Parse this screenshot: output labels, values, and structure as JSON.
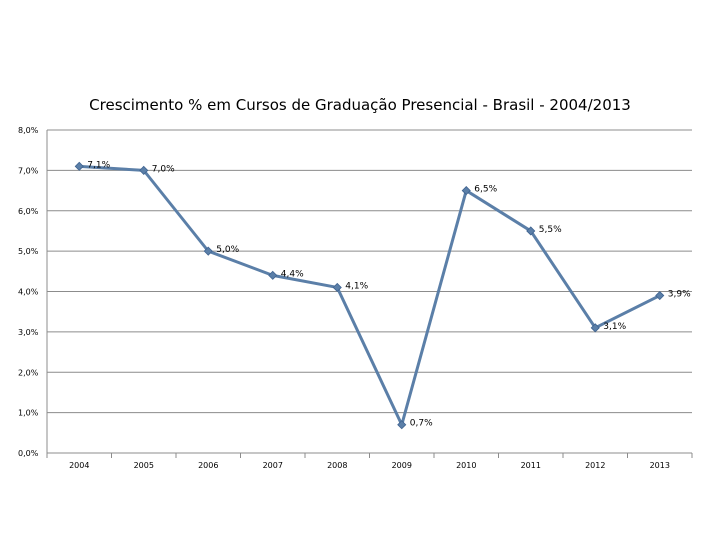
{
  "chart_data": {
    "type": "line",
    "title": "Crescimento % em Cursos de Graduação Presencial - Brasil - 2004/2013",
    "xlabel": "",
    "ylabel": "",
    "categories": [
      "2004",
      "2005",
      "2006",
      "2007",
      "2008",
      "2009",
      "2010",
      "2011",
      "2012",
      "2013"
    ],
    "series": [
      {
        "name": "Crescimento %",
        "values": [
          7.1,
          7.0,
          5.0,
          4.4,
          4.1,
          0.7,
          6.5,
          5.5,
          3.1,
          3.9
        ],
        "labels": [
          "7,1%",
          "7,0%",
          "5,0%",
          "4,4%",
          "4,1%",
          "0,7%",
          "6,5%",
          "5,5%",
          "3,1%",
          "3,9%"
        ]
      }
    ],
    "ylim": [
      0,
      8
    ],
    "yticks": [
      "0,0%",
      "1,0%",
      "2,0%",
      "3,0%",
      "4,0%",
      "5,0%",
      "6,0%",
      "7,0%",
      "8,0%"
    ],
    "grid": true,
    "line_color": "#5b7fa8"
  }
}
